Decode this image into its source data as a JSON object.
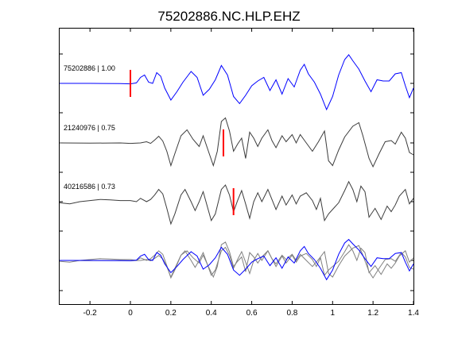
{
  "chart_data": {
    "type": "line",
    "title": "75202886.NC.HLP.EHZ",
    "xlabel": "",
    "ylabel": "",
    "xlim": [
      -0.35,
      1.4
    ],
    "x_ticks": [
      -0.2,
      0,
      0.2,
      0.4,
      0.6,
      0.8,
      1,
      1.2,
      1.4
    ],
    "x_tick_labels": [
      "-0.2",
      "0",
      "0.2",
      "0.4",
      "0.6",
      "0.8",
      "1",
      "1.2",
      "1.4"
    ],
    "grid": false,
    "colors": {
      "primary": "#0000ff",
      "secondary": "#3c3c3c",
      "stack_gray": "#808080",
      "pick": "#ff0000"
    },
    "series": [
      {
        "name": "75202886 | 1.00",
        "label": "75202886 | 1.00",
        "color": "#0000ff",
        "pick_x": 0.0,
        "points": [
          [
            -0.35,
            0.0
          ],
          [
            -0.2,
            0.0
          ],
          [
            -0.05,
            -0.01
          ],
          [
            0.0,
            -0.02
          ],
          [
            0.03,
            0.02
          ],
          [
            0.05,
            0.25
          ],
          [
            0.07,
            0.35
          ],
          [
            0.09,
            0.05
          ],
          [
            0.11,
            0.0
          ],
          [
            0.13,
            0.45
          ],
          [
            0.15,
            0.3
          ],
          [
            0.17,
            -0.2
          ],
          [
            0.2,
            -0.7
          ],
          [
            0.23,
            -0.35
          ],
          [
            0.26,
            0.05
          ],
          [
            0.3,
            0.5
          ],
          [
            0.33,
            0.25
          ],
          [
            0.36,
            -0.5
          ],
          [
            0.39,
            -0.25
          ],
          [
            0.42,
            0.15
          ],
          [
            0.45,
            0.75
          ],
          [
            0.48,
            0.35
          ],
          [
            0.51,
            -0.55
          ],
          [
            0.54,
            -0.85
          ],
          [
            0.57,
            -0.5
          ],
          [
            0.6,
            -0.1
          ],
          [
            0.63,
            0.1
          ],
          [
            0.66,
            0.25
          ],
          [
            0.69,
            -0.3
          ],
          [
            0.72,
            0.15
          ],
          [
            0.75,
            -0.45
          ],
          [
            0.78,
            0.2
          ],
          [
            0.81,
            -0.15
          ],
          [
            0.84,
            0.55
          ],
          [
            0.86,
            0.8
          ],
          [
            0.88,
            0.4
          ],
          [
            0.91,
            0.05
          ],
          [
            0.94,
            -0.45
          ],
          [
            0.97,
            -1.1
          ],
          [
            1.0,
            -0.55
          ],
          [
            1.03,
            0.35
          ],
          [
            1.06,
            1.0
          ],
          [
            1.08,
            1.2
          ],
          [
            1.1,
            0.95
          ],
          [
            1.13,
            0.6
          ],
          [
            1.16,
            0.1
          ],
          [
            1.19,
            -0.35
          ],
          [
            1.22,
            0.15
          ],
          [
            1.25,
            0.1
          ],
          [
            1.28,
            0.1
          ],
          [
            1.31,
            0.4
          ],
          [
            1.34,
            0.45
          ],
          [
            1.36,
            -0.1
          ],
          [
            1.38,
            -0.6
          ],
          [
            1.4,
            -0.2
          ]
        ]
      },
      {
        "name": "21240976 | 0.75",
        "label": "21240976 | 0.75",
        "color": "#3c3c3c",
        "pick_x": 0.46,
        "points": [
          [
            -0.35,
            0.0
          ],
          [
            -0.2,
            -0.01
          ],
          [
            -0.05,
            0.0
          ],
          [
            0.0,
            -0.02
          ],
          [
            0.05,
            0.0
          ],
          [
            0.08,
            0.05
          ],
          [
            0.1,
            -0.02
          ],
          [
            0.12,
            0.12
          ],
          [
            0.14,
            0.28
          ],
          [
            0.16,
            0.08
          ],
          [
            0.18,
            -0.35
          ],
          [
            0.2,
            -0.95
          ],
          [
            0.22,
            -0.45
          ],
          [
            0.25,
            0.3
          ],
          [
            0.28,
            0.55
          ],
          [
            0.31,
            0.15
          ],
          [
            0.34,
            -0.15
          ],
          [
            0.36,
            0.3
          ],
          [
            0.38,
            -0.2
          ],
          [
            0.41,
            -0.95
          ],
          [
            0.43,
            -0.35
          ],
          [
            0.45,
            0.9
          ],
          [
            0.47,
            1.05
          ],
          [
            0.49,
            0.5
          ],
          [
            0.51,
            -0.35
          ],
          [
            0.53,
            -0.05
          ],
          [
            0.55,
            0.2
          ],
          [
            0.57,
            -0.65
          ],
          [
            0.59,
            0.45
          ],
          [
            0.61,
            0.2
          ],
          [
            0.63,
            -0.15
          ],
          [
            0.65,
            0.2
          ],
          [
            0.68,
            0.55
          ],
          [
            0.7,
            0.1
          ],
          [
            0.72,
            -0.2
          ],
          [
            0.75,
            0.3
          ],
          [
            0.77,
            0.05
          ],
          [
            0.8,
            0.35
          ],
          [
            0.82,
            0.0
          ],
          [
            0.84,
            0.35
          ],
          [
            0.87,
            0.0
          ],
          [
            0.9,
            -0.35
          ],
          [
            0.93,
            0.05
          ],
          [
            0.96,
            0.5
          ],
          [
            0.98,
            -0.75
          ],
          [
            1.0,
            -0.95
          ],
          [
            1.03,
            -0.3
          ],
          [
            1.06,
            0.25
          ],
          [
            1.1,
            0.7
          ],
          [
            1.13,
            0.85
          ],
          [
            1.15,
            0.3
          ],
          [
            1.18,
            -0.65
          ],
          [
            1.2,
            -1.0
          ],
          [
            1.23,
            -0.45
          ],
          [
            1.26,
            0.05
          ],
          [
            1.29,
            0.1
          ],
          [
            1.31,
            -0.05
          ],
          [
            1.34,
            0.45
          ],
          [
            1.36,
            0.2
          ],
          [
            1.38,
            -0.4
          ],
          [
            1.4,
            -0.5
          ]
        ]
      },
      {
        "name": "40216586 | 0.73",
        "label": "40216586 | 0.73",
        "color": "#3c3c3c",
        "pick_x": 0.51,
        "points": [
          [
            -0.35,
            -0.05
          ],
          [
            -0.3,
            -0.1
          ],
          [
            -0.25,
            0.0
          ],
          [
            -0.2,
            0.05
          ],
          [
            -0.15,
            0.1
          ],
          [
            -0.1,
            0.08
          ],
          [
            -0.05,
            0.05
          ],
          [
            0.0,
            0.05
          ],
          [
            0.03,
            0.0
          ],
          [
            0.05,
            0.15
          ],
          [
            0.08,
            0.0
          ],
          [
            0.1,
            0.1
          ],
          [
            0.12,
            0.3
          ],
          [
            0.14,
            0.55
          ],
          [
            0.16,
            0.35
          ],
          [
            0.18,
            -0.3
          ],
          [
            0.2,
            -1.0
          ],
          [
            0.22,
            -0.55
          ],
          [
            0.25,
            0.3
          ],
          [
            0.27,
            0.55
          ],
          [
            0.3,
            0.0
          ],
          [
            0.32,
            -0.4
          ],
          [
            0.34,
            0.0
          ],
          [
            0.36,
            0.45
          ],
          [
            0.38,
            -0.2
          ],
          [
            0.4,
            -0.85
          ],
          [
            0.42,
            -0.55
          ],
          [
            0.45,
            0.55
          ],
          [
            0.47,
            0.75
          ],
          [
            0.49,
            0.3
          ],
          [
            0.51,
            -0.45
          ],
          [
            0.53,
            0.05
          ],
          [
            0.55,
            0.5
          ],
          [
            0.57,
            -0.1
          ],
          [
            0.59,
            -0.75
          ],
          [
            0.61,
            0.0
          ],
          [
            0.63,
            0.4
          ],
          [
            0.65,
            0.0
          ],
          [
            0.68,
            0.55
          ],
          [
            0.7,
            0.1
          ],
          [
            0.72,
            -0.35
          ],
          [
            0.75,
            0.25
          ],
          [
            0.77,
            -0.15
          ],
          [
            0.8,
            0.3
          ],
          [
            0.82,
            -0.1
          ],
          [
            0.84,
            0.25
          ],
          [
            0.87,
            0.4
          ],
          [
            0.9,
            0.05
          ],
          [
            0.92,
            -0.35
          ],
          [
            0.94,
            0.15
          ],
          [
            0.96,
            -0.85
          ],
          [
            0.98,
            -0.55
          ],
          [
            1.01,
            -0.25
          ],
          [
            1.03,
            -0.05
          ],
          [
            1.06,
            0.5
          ],
          [
            1.08,
            0.9
          ],
          [
            1.1,
            0.55
          ],
          [
            1.12,
            0.0
          ],
          [
            1.14,
            0.7
          ],
          [
            1.16,
            0.45
          ],
          [
            1.18,
            -0.7
          ],
          [
            1.21,
            -0.3
          ],
          [
            1.24,
            -0.8
          ],
          [
            1.27,
            -0.2
          ],
          [
            1.29,
            -0.45
          ],
          [
            1.31,
            -0.15
          ],
          [
            1.33,
            0.25
          ],
          [
            1.36,
            0.55
          ],
          [
            1.38,
            -0.1
          ],
          [
            1.4,
            0.15
          ]
        ]
      }
    ]
  }
}
